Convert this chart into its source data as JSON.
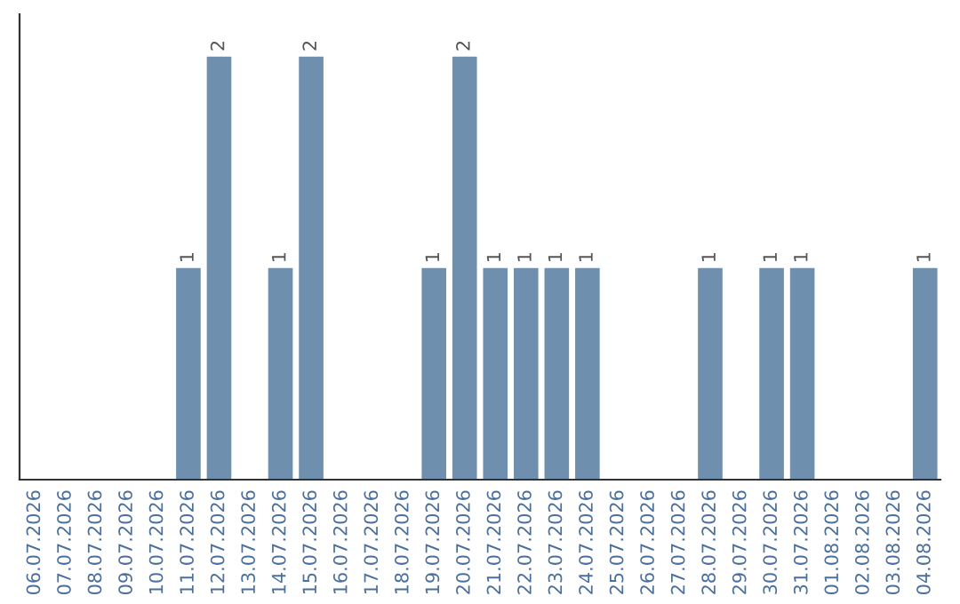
{
  "chart_data": {
    "type": "bar",
    "categories": [
      "06.07.2026",
      "07.07.2026",
      "08.07.2026",
      "09.07.2026",
      "10.07.2026",
      "11.07.2026",
      "12.07.2026",
      "13.07.2026",
      "14.07.2026",
      "15.07.2026",
      "16.07.2026",
      "17.07.2026",
      "18.07.2026",
      "19.07.2026",
      "20.07.2026",
      "21.07.2026",
      "22.07.2026",
      "23.07.2026",
      "24.07.2026",
      "25.07.2026",
      "26.07.2026",
      "27.07.2026",
      "28.07.2026",
      "29.07.2026",
      "30.07.2026",
      "31.07.2026",
      "01.08.2026",
      "02.08.2026",
      "03.08.2026",
      "04.08.2026"
    ],
    "values": [
      0,
      0,
      0,
      0,
      0,
      1,
      2,
      0,
      1,
      2,
      0,
      0,
      0,
      1,
      2,
      1,
      1,
      1,
      1,
      0,
      0,
      0,
      1,
      0,
      1,
      1,
      0,
      0,
      0,
      1
    ],
    "color": "#6f8fae",
    "value_labels": [
      null,
      null,
      null,
      null,
      null,
      "1",
      "2",
      null,
      "1",
      "2",
      null,
      null,
      null,
      "1",
      "2",
      "1",
      "1",
      "1",
      "1",
      null,
      null,
      null,
      "1",
      null,
      "1",
      "1",
      null,
      null,
      null,
      "1"
    ],
    "tick_labels": "x",
    "grid": false,
    "legend": false
  }
}
